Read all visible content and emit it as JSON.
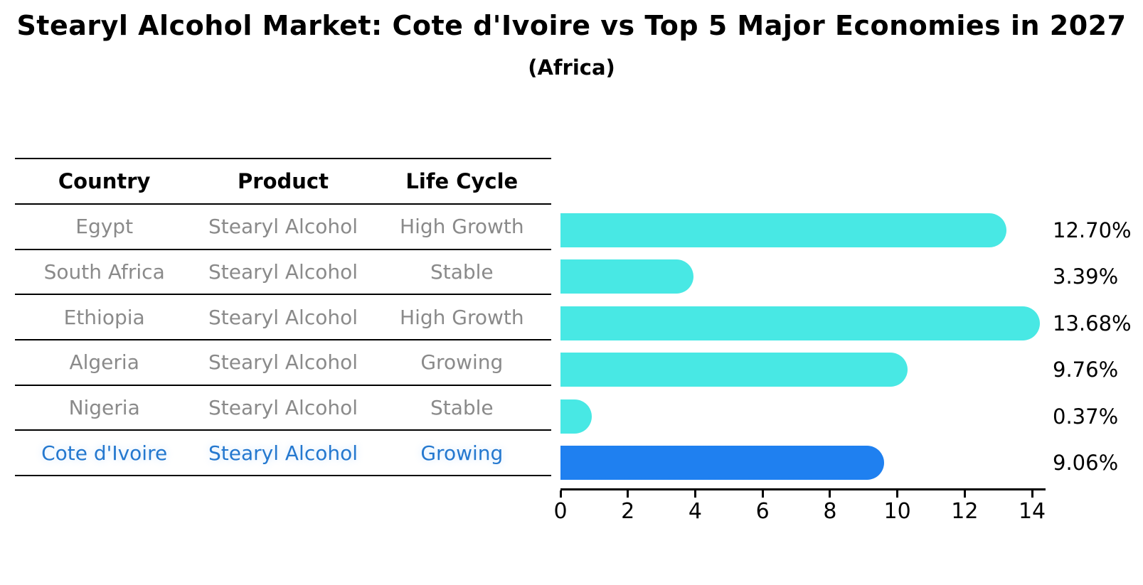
{
  "title": "Stearyl Alcohol Market: Cote d'Ivoire vs Top 5 Major Economies in 2027",
  "subtitle": "(Africa)",
  "table": {
    "headers": [
      "Country",
      "Product",
      "Life Cycle"
    ],
    "rows": [
      {
        "country": "Egypt",
        "product": "Stearyl Alcohol",
        "life_cycle": "High Growth"
      },
      {
        "country": "South Africa",
        "product": "Stearyl Alcohol",
        "life_cycle": "Stable"
      },
      {
        "country": "Ethiopia",
        "product": "Stearyl Alcohol",
        "life_cycle": "High Growth"
      },
      {
        "country": "Algeria",
        "product": "Stearyl Alcohol",
        "life_cycle": "Growing"
      },
      {
        "country": "Nigeria",
        "product": "Stearyl Alcohol",
        "life_cycle": "Stable"
      },
      {
        "country": "Cote d'Ivoire",
        "product": "Stearyl Alcohol",
        "life_cycle": "Growing"
      }
    ]
  },
  "chart_data": {
    "type": "bar",
    "orientation": "horizontal",
    "title": "Stearyl Alcohol Market: Cote d'Ivoire vs Top 5 Major Economies in 2027 (Africa)",
    "categories": [
      "Egypt",
      "South Africa",
      "Ethiopia",
      "Algeria",
      "Nigeria",
      "Cote d'Ivoire"
    ],
    "values": [
      12.7,
      3.39,
      13.68,
      9.76,
      0.37,
      9.06
    ],
    "value_labels": [
      "12.70%",
      "3.39%",
      "13.68%",
      "9.76%",
      "0.37%",
      "9.06%"
    ],
    "unit": "%",
    "xticks": [
      0,
      2,
      4,
      6,
      8,
      10,
      12,
      14
    ],
    "xlim": [
      0,
      14.4
    ],
    "grid": false,
    "legend": false,
    "highlight_index": 5
  },
  "colors": {
    "bar": "#48e8e4",
    "highlight_bar": "#1f80f0",
    "highlight_text": "#2478cf",
    "table_text": "#8a8a8a",
    "header_text": "#000000",
    "axis": "#000000"
  }
}
